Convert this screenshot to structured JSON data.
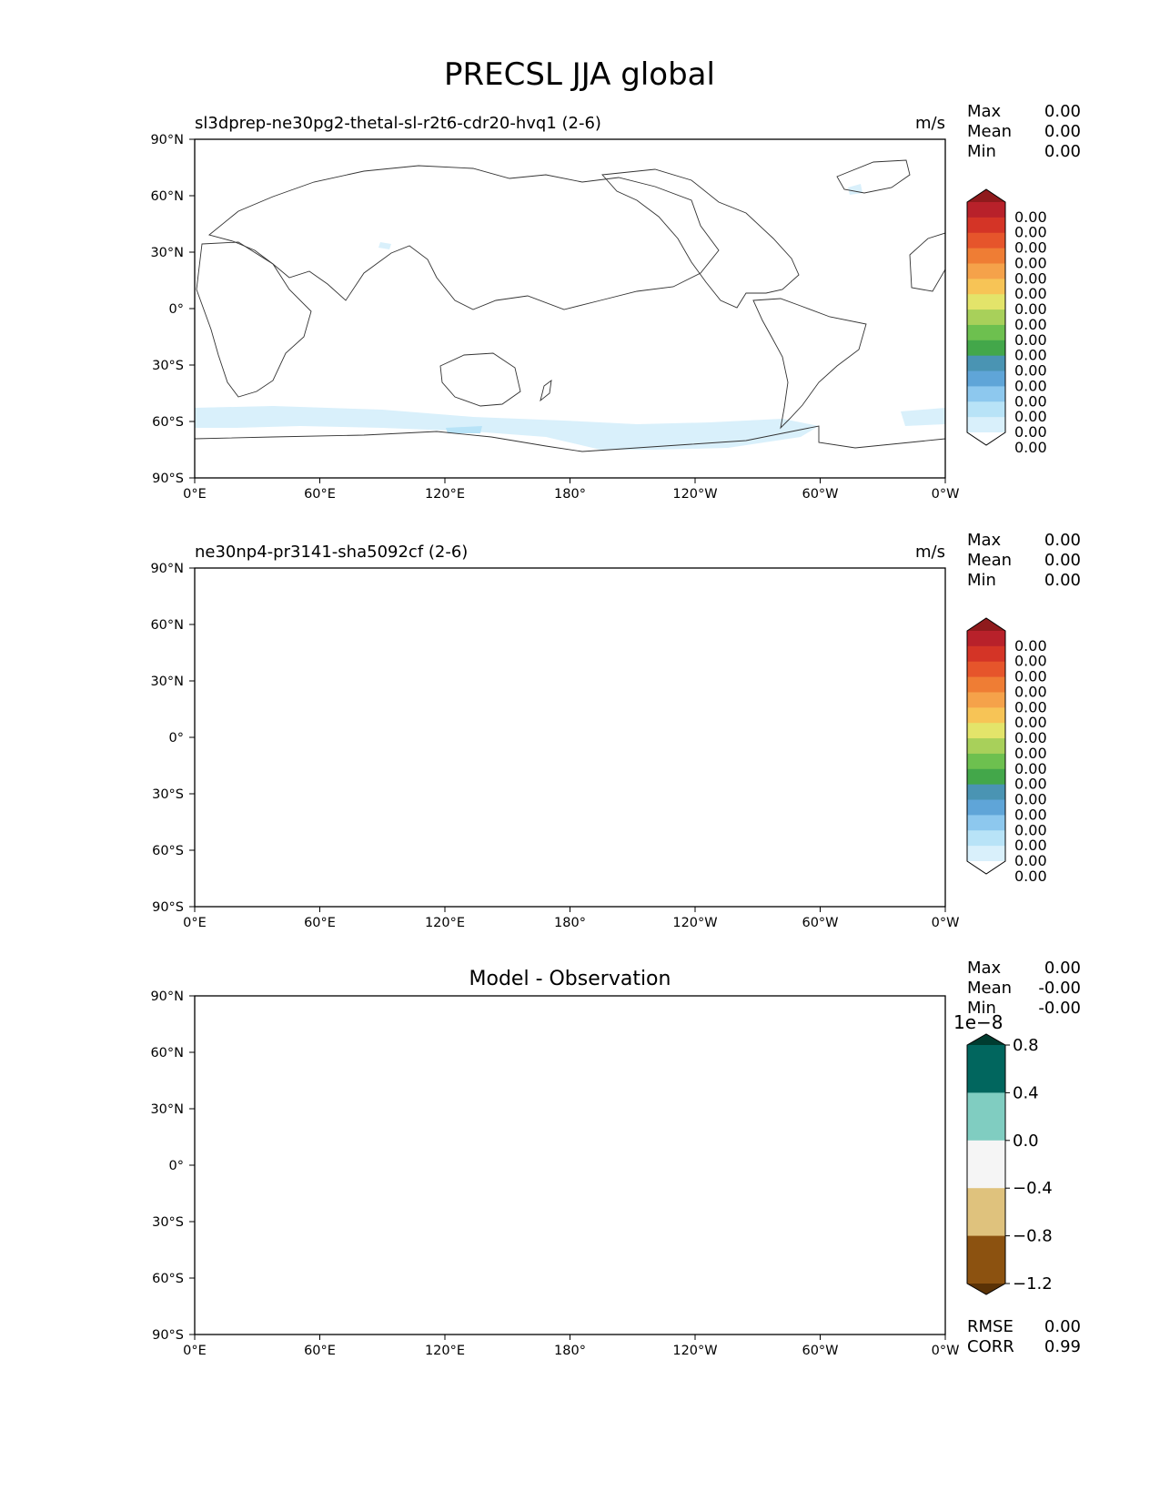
{
  "figure": {
    "title": "PRECSL JJA global"
  },
  "axes": {
    "x_ticks": [
      "0°E",
      "60°E",
      "120°E",
      "180°",
      "120°W",
      "60°W",
      "0°W"
    ],
    "y_ticks": [
      "90°N",
      "60°N",
      "30°N",
      "0°",
      "30°S",
      "60°S",
      "90°S"
    ]
  },
  "panels": [
    {
      "title_left": "sl3dprep-ne30pg2-thetal-sl-r2t6-cdr20-hvq1 (2-6)",
      "units": "m/s",
      "stats": [
        {
          "label": "Max",
          "value": "0.00"
        },
        {
          "label": "Mean",
          "value": "0.00"
        },
        {
          "label": "Min",
          "value": "0.00"
        }
      ]
    },
    {
      "title_left": "ne30np4-pr3141-sha5092cf (2-6)",
      "units": "m/s",
      "stats": [
        {
          "label": "Max",
          "value": "0.00"
        },
        {
          "label": "Mean",
          "value": "0.00"
        },
        {
          "label": "Min",
          "value": "0.00"
        }
      ]
    },
    {
      "title_center": "Model - Observation",
      "stats": [
        {
          "label": "Max",
          "value": "0.00"
        },
        {
          "label": "Mean",
          "value": "-0.00"
        },
        {
          "label": "Min",
          "value": "-0.00"
        }
      ],
      "footer_stats": [
        {
          "label": "RMSE",
          "value": "0.00"
        },
        {
          "label": "CORR",
          "value": "0.99"
        }
      ]
    }
  ],
  "colorbar_main": {
    "tick_labels": [
      "0.00",
      "0.00",
      "0.00",
      "0.00",
      "0.00",
      "0.00",
      "0.00",
      "0.00",
      "0.00",
      "0.00",
      "0.00",
      "0.00",
      "0.00",
      "0.00",
      "0.00",
      "0.00"
    ],
    "colors": [
      "#ffffff",
      "#d9f0fb",
      "#b8e3f7",
      "#8dc8ee",
      "#5fa5d8",
      "#4a94b3",
      "#43a74a",
      "#6dc04f",
      "#a8d05a",
      "#e3e46a",
      "#f7c456",
      "#f5a24a",
      "#ef7d34",
      "#e6552b",
      "#d43426",
      "#b8212a",
      "#8f1a1c"
    ]
  },
  "colorbar_diff": {
    "offset_label": "1e−8",
    "tick_labels": [
      "0.8",
      "0.4",
      "0.0",
      "−0.4",
      "−0.8",
      "−1.2"
    ],
    "colors": [
      "#5a3206",
      "#8c5210",
      "#dfc27d",
      "#f5f5f5",
      "#80cdc1",
      "#01665e",
      "#003c30"
    ]
  },
  "chart_data": {
    "type": "heatmap",
    "title": "PRECSL JJA global",
    "x_range": [
      0,
      360
    ],
    "y_range": [
      -90,
      90
    ],
    "panels": [
      {
        "name": "sl3dprep-ne30pg2-thetal-sl-r2t6-cdr20-hvq1 (2-6)",
        "max": 0.0,
        "mean": 0.0,
        "min": 0.0,
        "units": "m/s"
      },
      {
        "name": "ne30np4-pr3141-sha5092cf (2-6)",
        "max": 0.0,
        "mean": 0.0,
        "min": 0.0,
        "units": "m/s"
      },
      {
        "name": "Model - Observation",
        "max": 0.0,
        "mean": -0.0,
        "min": -0.0,
        "rmse": 0.0,
        "corr": 0.99,
        "color_levels": [
          -1.2,
          -0.8,
          -0.4,
          0.0,
          0.4,
          0.8
        ],
        "scale": "1e-8"
      }
    ]
  }
}
